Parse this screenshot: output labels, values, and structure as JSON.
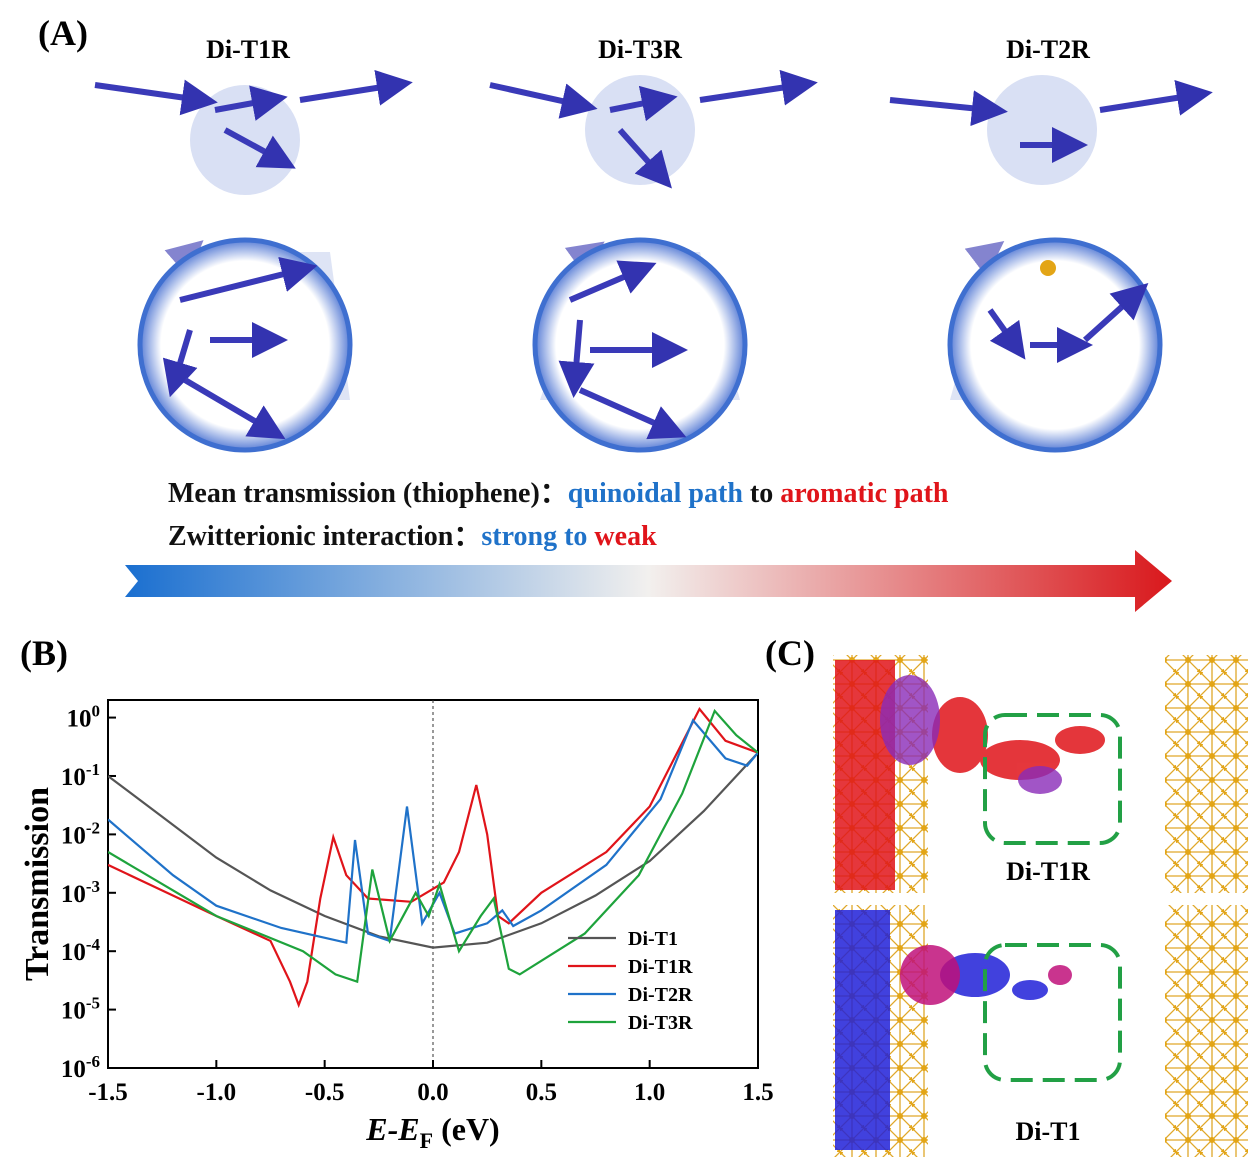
{
  "panel_a": {
    "label": "(A)",
    "molecules": [
      "Di-T1R",
      "Di-T3R",
      "Di-T2R"
    ],
    "line1": [
      "Mean transmission (thiophene)：",
      "quinoidal path",
      " to ",
      "aromatic path"
    ],
    "line2": [
      "Zwitterionic interaction：",
      "strong to",
      " weak"
    ]
  },
  "panel_b": {
    "label": "(B)"
  },
  "panel_c": {
    "label": "(C)",
    "captions": [
      "Di-T1R",
      "Di-T1"
    ]
  },
  "chart_data": {
    "type": "line",
    "ylabel": "Transmission",
    "xlabel": [
      "E",
      "-E",
      "F",
      " (eV)"
    ],
    "xlim": [
      -1.5,
      1.5
    ],
    "ylim": [
      1e-06,
      2
    ],
    "log_y": true,
    "vline": 0,
    "legend": "lower right",
    "xticks": [
      -1.5,
      {
        "value": -1,
        "label": "-1.0"
      },
      -0.5,
      {
        "value": 0,
        "label": "0.0"
      },
      0.5,
      {
        "value": 1,
        "label": "1.0"
      },
      1.5
    ],
    "yticks": [
      {
        "value": 1e-06,
        "label": "10^-6"
      },
      {
        "value": 1e-05,
        "label": "10^-5"
      },
      {
        "value": 0.0001,
        "label": "10^-4"
      },
      {
        "value": 0.001,
        "label": "10^-3"
      },
      {
        "value": 0.01,
        "label": "10^-2"
      },
      {
        "value": 0.1,
        "label": "10^-1"
      },
      {
        "value": 1,
        "label": "10^0"
      }
    ],
    "series": [
      {
        "name": "Di-T1",
        "color": "#555555",
        "x": [
          -1.5,
          -1.25,
          -1.0,
          -0.75,
          -0.5,
          -0.25,
          0,
          0.25,
          0.5,
          0.75,
          1.0,
          1.25,
          1.5
        ],
        "values": [
          0.1,
          0.02,
          0.004,
          0.0011,
          0.0004,
          0.00018,
          0.000115,
          0.00014,
          0.0003,
          0.0009,
          0.0035,
          0.025,
          0.25
        ]
      },
      {
        "name": "Di-T1R",
        "color": "#e0141a",
        "x": [
          -1.5,
          -1.0,
          -0.75,
          -0.66,
          -0.62,
          -0.58,
          -0.52,
          -0.46,
          -0.4,
          -0.3,
          -0.1,
          0.05,
          0.12,
          0.2,
          0.25,
          0.3,
          0.35,
          0.5,
          0.8,
          1.0,
          1.23,
          1.35,
          1.5
        ],
        "values": [
          0.003,
          0.0004,
          0.00015,
          3e-05,
          1.2e-05,
          3e-05,
          0.0008,
          0.009,
          0.002,
          0.0008,
          0.0007,
          0.0015,
          0.005,
          0.07,
          0.01,
          0.0004,
          0.0003,
          0.001,
          0.005,
          0.03,
          1.4,
          0.4,
          0.25
        ]
      },
      {
        "name": "Di-T2R",
        "color": "#1f72c9",
        "x": [
          -1.5,
          -1.2,
          -1.0,
          -0.7,
          -0.4,
          -0.36,
          -0.3,
          -0.2,
          -0.12,
          -0.05,
          0.03,
          0.1,
          0.25,
          0.32,
          0.37,
          0.5,
          0.8,
          1.05,
          1.2,
          1.35,
          1.45,
          1.5
        ],
        "values": [
          0.018,
          0.002,
          0.0006,
          0.00025,
          0.00014,
          0.008,
          0.0002,
          0.00015,
          0.03,
          0.0003,
          0.001,
          0.0002,
          0.0003,
          0.0005,
          0.00027,
          0.0005,
          0.003,
          0.04,
          0.9,
          0.2,
          0.15,
          0.25
        ]
      },
      {
        "name": "Di-T3R",
        "color": "#1ea33c",
        "x": [
          -1.5,
          -1.0,
          -0.6,
          -0.45,
          -0.35,
          -0.28,
          -0.2,
          -0.08,
          -0.02,
          0.03,
          0.12,
          0.22,
          0.28,
          0.35,
          0.4,
          0.7,
          0.95,
          1.15,
          1.3,
          1.4,
          1.5
        ],
        "values": [
          0.005,
          0.0004,
          0.0001,
          4e-05,
          3e-05,
          0.0025,
          0.00015,
          0.001,
          0.0004,
          0.0014,
          0.0001,
          0.0004,
          0.0008,
          5e-05,
          4e-05,
          0.0002,
          0.002,
          0.05,
          1.3,
          0.5,
          0.25
        ]
      }
    ]
  }
}
